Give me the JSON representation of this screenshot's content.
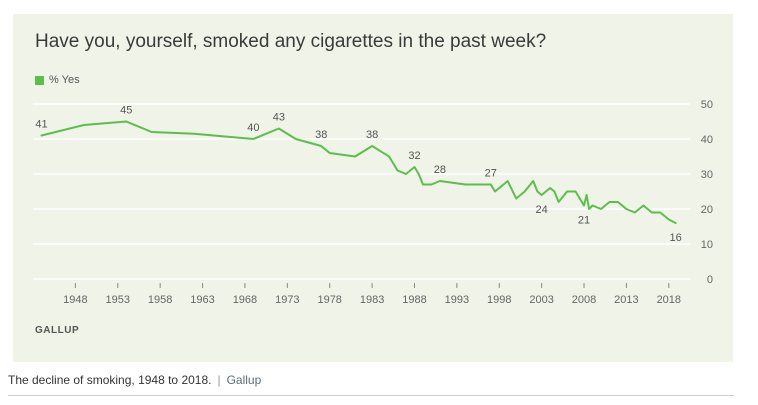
{
  "chart_data": {
    "type": "line",
    "title": "Have you, yourself, smoked any cigarettes in the past week?",
    "series": [
      {
        "name": "% Yes",
        "color": "#5cbf4a",
        "points": [
          [
            1944,
            41
          ],
          [
            1949,
            44
          ],
          [
            1954,
            45
          ],
          [
            1957,
            42
          ],
          [
            1962,
            41.5
          ],
          [
            1969,
            40
          ],
          [
            1972,
            43
          ],
          [
            1974,
            40
          ],
          [
            1977,
            38
          ],
          [
            1978,
            36
          ],
          [
            1981,
            35
          ],
          [
            1983,
            38
          ],
          [
            1985,
            35
          ],
          [
            1986,
            31
          ],
          [
            1987,
            30
          ],
          [
            1988,
            32
          ],
          [
            1988.5,
            30
          ],
          [
            1989,
            27
          ],
          [
            1990,
            27
          ],
          [
            1991,
            28
          ],
          [
            1994,
            27
          ],
          [
            1997,
            27
          ],
          [
            1997.5,
            25
          ],
          [
            1998,
            26
          ],
          [
            1999,
            28
          ],
          [
            2000,
            23
          ],
          [
            2001,
            25
          ],
          [
            2002,
            28
          ],
          [
            2002.5,
            25
          ],
          [
            2003,
            24
          ],
          [
            2004,
            26
          ],
          [
            2004.5,
            25
          ],
          [
            2005,
            22
          ],
          [
            2006,
            25
          ],
          [
            2007,
            25
          ],
          [
            2007.5,
            23
          ],
          [
            2008,
            21
          ],
          [
            2008.3,
            24
          ],
          [
            2008.6,
            20
          ],
          [
            2009,
            21
          ],
          [
            2010,
            20
          ],
          [
            2011,
            22
          ],
          [
            2012,
            22
          ],
          [
            2013,
            20
          ],
          [
            2014,
            19
          ],
          [
            2015,
            21
          ],
          [
            2016,
            19
          ],
          [
            2017,
            19
          ],
          [
            2018,
            17
          ],
          [
            2018.8,
            16
          ]
        ]
      }
    ],
    "data_labels": [
      {
        "x": 1944,
        "y": 41,
        "text": "41",
        "pos": "above"
      },
      {
        "x": 1954,
        "y": 45,
        "text": "45",
        "pos": "above"
      },
      {
        "x": 1969,
        "y": 40,
        "text": "40",
        "pos": "above"
      },
      {
        "x": 1972,
        "y": 43,
        "text": "43",
        "pos": "above"
      },
      {
        "x": 1977,
        "y": 38,
        "text": "38",
        "pos": "above"
      },
      {
        "x": 1983,
        "y": 38,
        "text": "38",
        "pos": "above"
      },
      {
        "x": 1988,
        "y": 32,
        "text": "32",
        "pos": "above"
      },
      {
        "x": 1991,
        "y": 28,
        "text": "28",
        "pos": "above"
      },
      {
        "x": 1997,
        "y": 27,
        "text": "27",
        "pos": "above"
      },
      {
        "x": 2003,
        "y": 24,
        "text": "24",
        "pos": "below"
      },
      {
        "x": 2008,
        "y": 21,
        "text": "21",
        "pos": "below"
      },
      {
        "x": 2018.8,
        "y": 16,
        "text": "16",
        "pos": "below"
      }
    ],
    "x_ticks": [
      1948,
      1953,
      1958,
      1963,
      1968,
      1973,
      1978,
      1983,
      1988,
      1993,
      1998,
      2003,
      2008,
      2013,
      2018
    ],
    "y_ticks": [
      0,
      10,
      20,
      30,
      40,
      50
    ],
    "xlim": [
      1943,
      2020.5
    ],
    "ylim": [
      0,
      50
    ],
    "grid": true,
    "y_axis_side": "right",
    "legend_position": "top-left"
  },
  "brand": "GALLUP",
  "caption": {
    "text": "The decline of smoking, 1948 to 2018.",
    "separator": "|",
    "source": "Gallup"
  }
}
